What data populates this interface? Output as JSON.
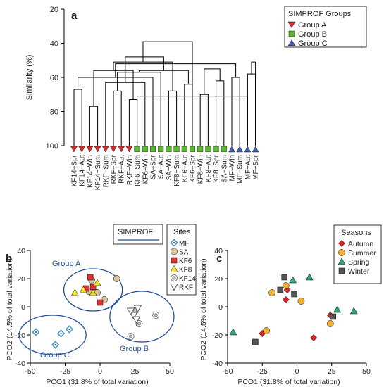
{
  "colors": {
    "axis": "#000000",
    "ellipse": "#1f4e9a",
    "groupA": "#d32f2f",
    "groupB": "#5cb82e",
    "groupC": "#3f5fb0",
    "autumn": "#d62728",
    "summer": "#f2b134",
    "spring": "#2aa876",
    "winter": "#555555",
    "site_mf": "#3a8fc9",
    "site_sa": "#d9c49b",
    "site_kf6": "#e03434",
    "site_kf8": "#f5e62b",
    "site_kf14": "#bfbfbf",
    "site_rkf": "#808080"
  },
  "chart_data": [
    {
      "panel": "a",
      "type": "dendrogram",
      "ylabel": "Similarity (%)",
      "ylim": [
        20,
        100
      ],
      "yticks": [
        20,
        40,
        60,
        80,
        100
      ],
      "leaves": [
        {
          "label": "KF14−Spr",
          "group": "A"
        },
        {
          "label": "KF14−Aut",
          "group": "A"
        },
        {
          "label": "KF14−Win",
          "group": "A"
        },
        {
          "label": "KF14−Sum",
          "group": "A"
        },
        {
          "label": "RKF−Sum",
          "group": "A"
        },
        {
          "label": "RKF−Spr",
          "group": "A"
        },
        {
          "label": "RKF−Aut",
          "group": "A"
        },
        {
          "label": "RKF−Win",
          "group": "A"
        },
        {
          "label": "KF6−Sum",
          "group": "B"
        },
        {
          "label": "KF6−Win",
          "group": "B"
        },
        {
          "label": "SA−Spr",
          "group": "B"
        },
        {
          "label": "SA−Aut",
          "group": "B"
        },
        {
          "label": "SA−Win",
          "group": "B"
        },
        {
          "label": "KF8−Sum",
          "group": "B"
        },
        {
          "label": "KF6−Aut",
          "group": "B"
        },
        {
          "label": "KF6−Spr",
          "group": "B"
        },
        {
          "label": "KF8−Win",
          "group": "B"
        },
        {
          "label": "KF8−Aut",
          "group": "B"
        },
        {
          "label": "KF8−Spr",
          "group": "B"
        },
        {
          "label": "SA−Sum",
          "group": "B"
        },
        {
          "label": "MF−Win",
          "group": "C"
        },
        {
          "label": "MF−Sum",
          "group": "C"
        },
        {
          "label": "MF−Aut",
          "group": "C"
        },
        {
          "label": "MF−Spr",
          "group": "C"
        }
      ],
      "merges": [
        [
          0,
          1,
          67
        ],
        [
          5,
          6,
          68
        ],
        [
          2,
          3,
          77
        ],
        [
          8,
          7,
          73
        ],
        [
          9,
          4,
          63
        ],
        [
          24,
          10,
          60
        ],
        [
          25,
          11,
          57
        ],
        [
          26,
          27,
          56
        ],
        [
          14,
          15,
          64
        ],
        [
          12,
          13,
          68
        ],
        [
          16,
          17,
          70
        ],
        [
          18,
          19,
          62
        ],
        [
          20,
          21,
          60
        ],
        [
          22,
          23,
          58
        ],
        [
          30,
          32,
          56
        ],
        [
          31,
          33,
          51
        ],
        [
          22,
          8,
          71
        ],
        [
          35,
          34,
          55
        ],
        [
          36,
          29,
          52
        ],
        [
          23,
          37,
          51
        ],
        [
          38,
          28,
          48
        ],
        [
          39,
          40,
          39
        ]
      ],
      "legend": {
        "title": "SIMPROF Groups",
        "items": [
          {
            "label": "Group A",
            "marker": "triangle-down",
            "color": "#d32f2f"
          },
          {
            "label": "Group B",
            "marker": "square",
            "color": "#5cb82e"
          },
          {
            "label": "Group C",
            "marker": "triangle-up",
            "color": "#3f5fb0"
          }
        ]
      }
    },
    {
      "panel": "b",
      "type": "scatter",
      "xlabel": "PCO1 (31.8% of total variation)",
      "ylabel": "PCO2 (14.5% of total variation)",
      "xlim": [
        -50,
        50
      ],
      "ylim": [
        -40,
        40
      ],
      "xticks": [
        -50,
        -25,
        0,
        25,
        50
      ],
      "yticks": [
        -40,
        -20,
        0,
        20,
        40
      ],
      "series": [
        {
          "name": "MF",
          "marker": "diamond-dot",
          "points": [
            [
              -46,
              -18
            ],
            [
              -28,
              -19
            ],
            [
              -22,
              -16
            ],
            [
              -32,
              -27
            ]
          ]
        },
        {
          "name": "SA",
          "marker": "circle",
          "points": [
            [
              -6,
              19
            ],
            [
              -8,
              11
            ],
            [
              -2,
              10
            ],
            [
              3,
              5
            ],
            [
              12,
              20
            ]
          ]
        },
        {
          "name": "KF6",
          "marker": "square",
          "points": [
            [
              -7,
              21
            ],
            [
              -10,
              13
            ],
            [
              -5,
              14
            ],
            [
              0,
              3
            ]
          ]
        },
        {
          "name": "KF8",
          "marker": "triangle-up",
          "points": [
            [
              -18,
              10
            ],
            [
              -12,
              12
            ],
            [
              -5,
              10
            ],
            [
              -2,
              17
            ]
          ]
        },
        {
          "name": "KF14",
          "marker": "double-circle",
          "points": [
            [
              40,
              -6
            ],
            [
              28,
              -12
            ],
            [
              25,
              -3
            ],
            [
              22,
              -21
            ]
          ]
        },
        {
          "name": "RKF",
          "marker": "triangle-down",
          "points": [
            [
              24,
              -6
            ],
            [
              27,
              -1
            ],
            [
              22,
              -3
            ],
            [
              26,
              -9
            ]
          ]
        }
      ],
      "groups": [
        {
          "name": "Group A",
          "center": [
            -5,
            12
          ],
          "radii": [
            21,
            15
          ]
        },
        {
          "name": "Group B",
          "center": [
            30,
            -7
          ],
          "radii": [
            23,
            18
          ]
        },
        {
          "name": "Group C",
          "center": [
            -34,
            -20
          ],
          "radii": [
            24,
            14
          ]
        }
      ],
      "legend_sites": {
        "title": "Sites",
        "items": [
          "MF",
          "SA",
          "KF6",
          "KF8",
          "KF14",
          "RKF"
        ]
      },
      "legend_simprof": {
        "title": "SIMPROF"
      }
    },
    {
      "panel": "c",
      "type": "scatter",
      "xlabel": "PCO1 (31.8% of total variation)",
      "ylabel": "PCO2 (14.5% of total variation)",
      "xlim": [
        -50,
        50
      ],
      "ylim": [
        -40,
        40
      ],
      "xticks": [
        -50,
        -25,
        0,
        25,
        50
      ],
      "yticks": [
        -40,
        -20,
        0,
        20,
        40
      ],
      "series": [
        {
          "name": "Autumn",
          "marker": "diamond",
          "points": [
            [
              -7,
              12
            ],
            [
              -8,
              5
            ],
            [
              -25,
              -19
            ],
            [
              12,
              -22
            ],
            [
              24,
              -6
            ]
          ]
        },
        {
          "name": "Summer",
          "marker": "circle",
          "points": [
            [
              -18,
              10
            ],
            [
              -8,
              15
            ],
            [
              3,
              4
            ],
            [
              -22,
              -17
            ],
            [
              24,
              -12
            ]
          ]
        },
        {
          "name": "Spring",
          "marker": "triangle-up",
          "points": [
            [
              -46,
              -18
            ],
            [
              -3,
              19
            ],
            [
              9,
              21
            ],
            [
              29,
              -2
            ],
            [
              41,
              -3
            ]
          ]
        },
        {
          "name": "Winter",
          "marker": "square",
          "points": [
            [
              -9,
              21
            ],
            [
              -12,
              12
            ],
            [
              -2,
              9
            ],
            [
              26,
              -7
            ],
            [
              -30,
              -25
            ]
          ]
        }
      ],
      "legend": {
        "title": "Seasons",
        "items": [
          "Autumn",
          "Summer",
          "Spring",
          "Winter"
        ]
      }
    }
  ],
  "panel_labels": {
    "a": "a",
    "b": "b",
    "c": "c"
  },
  "groups_text": {
    "a": "Group A",
    "b": "Group B",
    "c": "Group C"
  }
}
